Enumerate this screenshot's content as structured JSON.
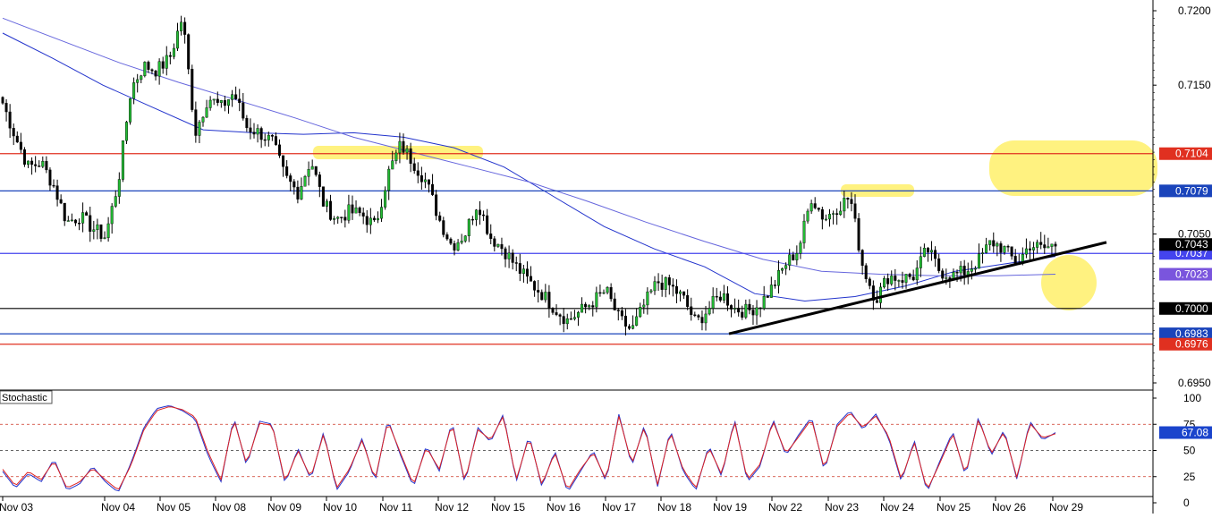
{
  "chart_data": [
    {
      "type": "candlestick",
      "instrument_note": "",
      "y_axis": {
        "tick_labels": [
          "0.7200",
          "0.7150",
          "0.7050",
          "0.6950"
        ],
        "tick_values": [
          0.72,
          0.715,
          0.705,
          0.695
        ],
        "ylim": [
          0.6945,
          0.7207
        ]
      },
      "x_axis": {
        "tick_labels": [
          "Nov 03",
          "Nov 04",
          "Nov 05",
          "Nov 08",
          "Nov 09",
          "Nov 10",
          "Nov 11",
          "Nov 12",
          "Nov 15",
          "Nov 16",
          "Nov 17",
          "Nov 18",
          "Nov 19",
          "Nov 22",
          "Nov 23",
          "Nov 24",
          "Nov 25",
          "Nov 26",
          "Nov 29"
        ]
      },
      "price_path": [
        0.7138,
        0.7115,
        0.7095,
        0.7098,
        0.7082,
        0.7058,
        0.7062,
        0.7054,
        0.7048,
        0.7085,
        0.7148,
        0.7163,
        0.716,
        0.7168,
        0.7196,
        0.7118,
        0.7142,
        0.7135,
        0.7145,
        0.7122,
        0.7118,
        0.7112,
        0.7088,
        0.7078,
        0.71,
        0.707,
        0.706,
        0.7065,
        0.7063,
        0.7055,
        0.709,
        0.711,
        0.7098,
        0.7085,
        0.706,
        0.7042,
        0.705,
        0.7072,
        0.7048,
        0.704,
        0.7028,
        0.7018,
        0.701,
        0.7,
        0.6992,
        0.6998,
        0.7005,
        0.7012,
        0.6993,
        0.6985,
        0.7003,
        0.7018,
        0.7015,
        0.7007,
        0.699,
        0.7,
        0.701,
        0.7,
        0.6998,
        0.7003,
        0.7015,
        0.703,
        0.704,
        0.7075,
        0.706,
        0.7068,
        0.7075,
        0.7028,
        0.7006,
        0.7022,
        0.702,
        0.7022,
        0.704,
        0.7025,
        0.7022,
        0.7025,
        0.7032,
        0.7045,
        0.704,
        0.703,
        0.7043,
        0.704,
        0.7043
      ],
      "moving_averages": [
        {
          "color": "#2233cc",
          "values": [
            0.7185,
            0.7168,
            0.715,
            0.7135,
            0.712,
            0.7118,
            0.7117,
            0.7118,
            0.7115,
            0.7108,
            0.7095,
            0.7075,
            0.7055,
            0.704,
            0.7028,
            0.701,
            0.7005,
            0.7008,
            0.7015,
            0.7025,
            0.703,
            0.7035
          ]
        },
        {
          "color": "#6666dd",
          "values": [
            0.7195,
            0.718,
            0.7165,
            0.7152,
            0.714,
            0.7128,
            0.7115,
            0.7105,
            0.7095,
            0.7085,
            0.7072,
            0.7058,
            0.7045,
            0.7033,
            0.7025,
            0.7023,
            0.7022,
            0.7022,
            0.7023
          ]
        }
      ],
      "horizontal_lines": [
        {
          "value": 0.7104,
          "color": "#e03020",
          "label": "0.7104"
        },
        {
          "value": 0.7079,
          "color": "#1a44bb",
          "label": "0.7079"
        },
        {
          "value": 0.7037,
          "color": "#4444ee",
          "label": "0.7037"
        },
        {
          "value": 0.7,
          "color": "#000000",
          "label": "0.7000"
        },
        {
          "value": 0.6983,
          "color": "#1a44bb",
          "label": "0.6983"
        },
        {
          "value": 0.6976,
          "color": "#e03020",
          "label": "0.6976"
        }
      ],
      "price_markers": [
        {
          "value": 0.7043,
          "label": "0.7043",
          "color": "#000000"
        },
        {
          "value": 0.7023,
          "label": "0.7023",
          "color": "#7a55dd"
        }
      ],
      "trend_line": {
        "x_from": "Nov 19",
        "y_from": 0.6983,
        "x_to": "Nov 29",
        "y_to": 0.703,
        "color": "#000000"
      },
      "highlights": [
        {
          "shape": "rounded-rect",
          "color": "#ffee55",
          "note": "resistance zone near 0.7104 (Nov 10 - Nov 12)"
        },
        {
          "shape": "rounded-rect",
          "color": "#ffee55",
          "note": "resistance zone near 0.7079 (Nov 23 - Nov 24)"
        },
        {
          "shape": "rounded-rect",
          "color": "#ffee55",
          "note": "zone 0.7079 - 0.7104 on right edge"
        },
        {
          "shape": "circle",
          "color": "#ffee55",
          "note": "support near trend line"
        }
      ]
    },
    {
      "type": "line",
      "title": "Stochastic",
      "y_axis": {
        "tick_labels": [
          "100",
          "75",
          "50",
          "25",
          "0"
        ],
        "tick_values": [
          100,
          75,
          50,
          25,
          0
        ],
        "ylim": [
          0,
          100
        ]
      },
      "reference_lines": [
        {
          "value": 75,
          "style": "dashed"
        },
        {
          "value": 50,
          "style": "dashed"
        },
        {
          "value": 25,
          "style": "dashed"
        }
      ],
      "current_value": {
        "label": "67.08",
        "value": 67.08
      },
      "series": [
        {
          "color": "#2233cc",
          "values": [
            30,
            14,
            28,
            20,
            42,
            12,
            18,
            35,
            20,
            10,
            38,
            72,
            90,
            93,
            88,
            80,
            45,
            20,
            82,
            35,
            78,
            75,
            18,
            52,
            22,
            68,
            12,
            30,
            62,
            20,
            80,
            45,
            15,
            55,
            30,
            78,
            18,
            72,
            58,
            85,
            20,
            65,
            15,
            50,
            10,
            30,
            50,
            20,
            85,
            35,
            75,
            15,
            70,
            30,
            12,
            55,
            25,
            80,
            20,
            35,
            80,
            45,
            65,
            82,
            30,
            75,
            88,
            70,
            85,
            62,
            20,
            60,
            10,
            40,
            68,
            25,
            82,
            45,
            70,
            22,
            78,
            60,
            67
          ]
        },
        {
          "color": "#dd2222",
          "values": [
            32,
            16,
            30,
            22,
            40,
            14,
            20,
            33,
            22,
            12,
            36,
            70,
            88,
            92,
            89,
            82,
            48,
            22,
            80,
            37,
            76,
            74,
            20,
            50,
            24,
            66,
            14,
            32,
            60,
            22,
            78,
            47,
            17,
            53,
            32,
            76,
            20,
            70,
            60,
            83,
            22,
            63,
            17,
            48,
            12,
            32,
            48,
            22,
            83,
            37,
            73,
            17,
            68,
            32,
            14,
            53,
            27,
            78,
            22,
            37,
            78,
            47,
            63,
            80,
            32,
            73,
            86,
            72,
            83,
            64,
            22,
            58,
            12,
            38,
            66,
            27,
            80,
            47,
            68,
            24,
            76,
            62,
            66
          ]
        }
      ]
    }
  ]
}
